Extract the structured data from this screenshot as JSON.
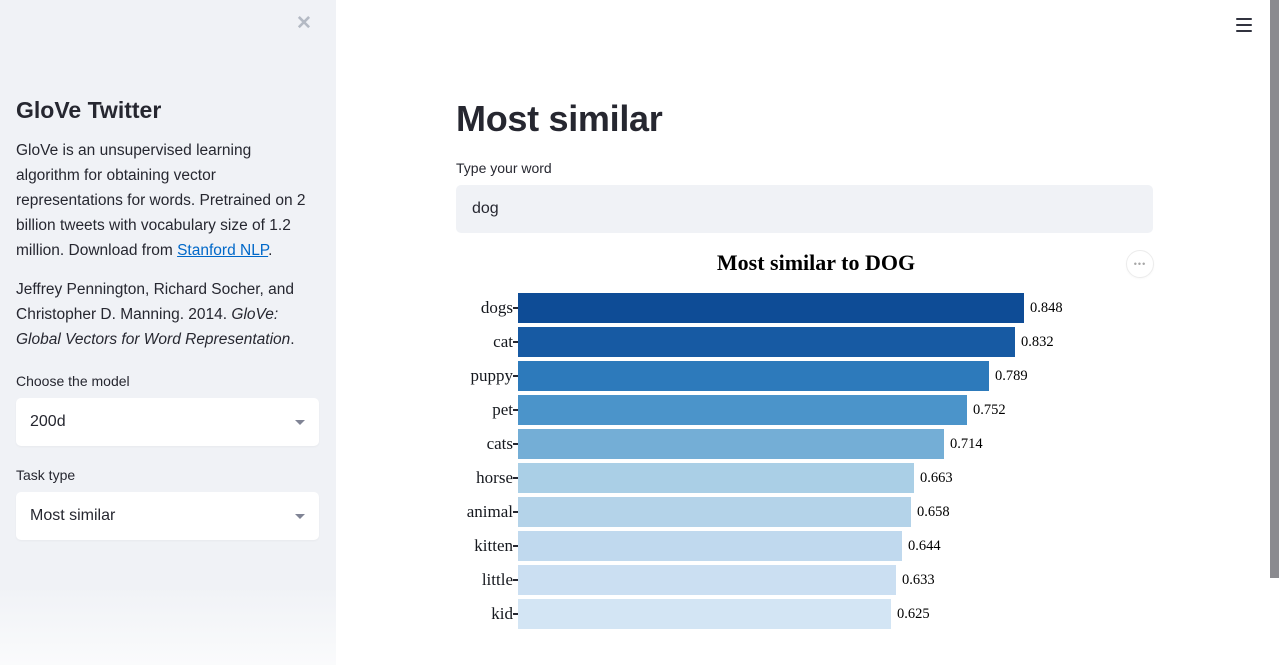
{
  "app": {
    "menu_icon": "hamburger-menu",
    "scrollbar": {
      "visible": true
    }
  },
  "sidebar": {
    "close_icon": "✕",
    "title": "GloVe Twitter",
    "description": {
      "before_link": "GloVe is an unsupervised learning algorithm for obtaining vector representations for words. Pretrained on 2 billion tweets with vocabulary size of 1.2 million. Download from ",
      "link_text": "Stanford NLP",
      "after_link": "."
    },
    "citation": {
      "normal": "Jeffrey Pennington, Richard Socher, and Christopher D. Manning. 2014. ",
      "italic": "GloVe: Global Vectors for Word Representation",
      "end": "."
    },
    "model_select": {
      "label": "Choose the model",
      "value": "200d"
    },
    "task_select": {
      "label": "Task type",
      "value": "Most similar"
    }
  },
  "main": {
    "title": "Most similar",
    "input": {
      "label": "Type your word",
      "value": "dog"
    },
    "chart_menu_icon": "•••"
  },
  "chart_data": {
    "type": "bar",
    "orientation": "horizontal",
    "title": "Most similar to DOG",
    "categories": [
      "dogs",
      "cat",
      "puppy",
      "pet",
      "cats",
      "horse",
      "animal",
      "kitten",
      "little",
      "kid"
    ],
    "values": [
      0.848,
      0.832,
      0.789,
      0.752,
      0.714,
      0.663,
      0.658,
      0.644,
      0.633,
      0.625
    ],
    "bar_colors": [
      "#0e4c96",
      "#175aa3",
      "#2d7abb",
      "#4b94ca",
      "#74aed6",
      "#aacfe6",
      "#b4d3e9",
      "#c0d9ee",
      "#cbdff2",
      "#d3e5f4"
    ],
    "value_decimals": 3,
    "xlim": [
      0,
      1.06
    ],
    "grid": false,
    "legend": "none",
    "xlabel": "",
    "ylabel": ""
  }
}
